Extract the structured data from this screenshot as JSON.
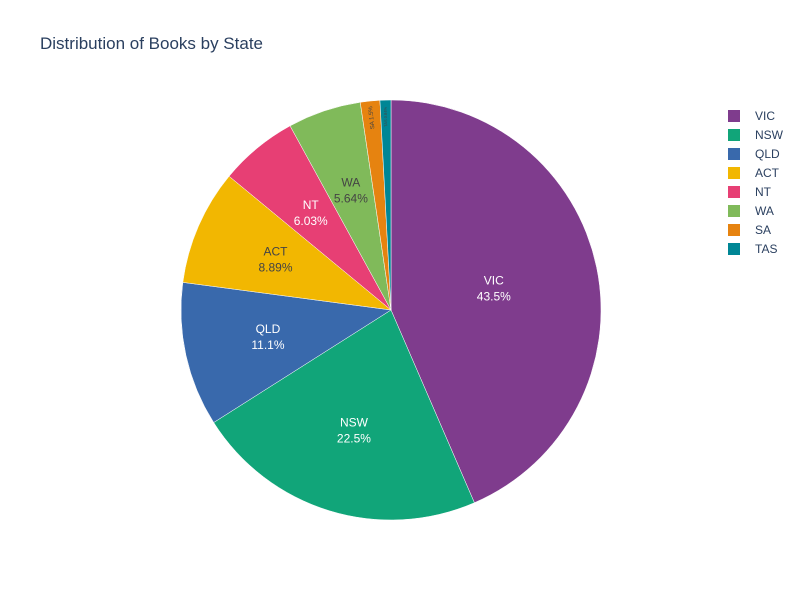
{
  "chart_data": {
    "type": "pie",
    "title": "Distribution of Books by State",
    "slices": [
      {
        "label": "VIC",
        "value": 43.5,
        "percent_label": "43.5%",
        "color": "#7f3c8d"
      },
      {
        "label": "NSW",
        "value": 22.5,
        "percent_label": "22.5%",
        "color": "#11a579"
      },
      {
        "label": "QLD",
        "value": 11.1,
        "percent_label": "11.1%",
        "color": "#3969ac"
      },
      {
        "label": "ACT",
        "value": 8.89,
        "percent_label": "8.89%",
        "color": "#f2b701"
      },
      {
        "label": "NT",
        "value": 6.03,
        "percent_label": "6.03%",
        "color": "#e73f74"
      },
      {
        "label": "WA",
        "value": 5.64,
        "percent_label": "5.64%",
        "color": "#80ba5a"
      },
      {
        "label": "SA",
        "value": 1.5,
        "percent_label": "1.5%",
        "color": "#e68310"
      },
      {
        "label": "TAS",
        "value": 0.84,
        "percent_label": "0.84%",
        "color": "#008695"
      }
    ],
    "legend_placement": "top-right"
  }
}
